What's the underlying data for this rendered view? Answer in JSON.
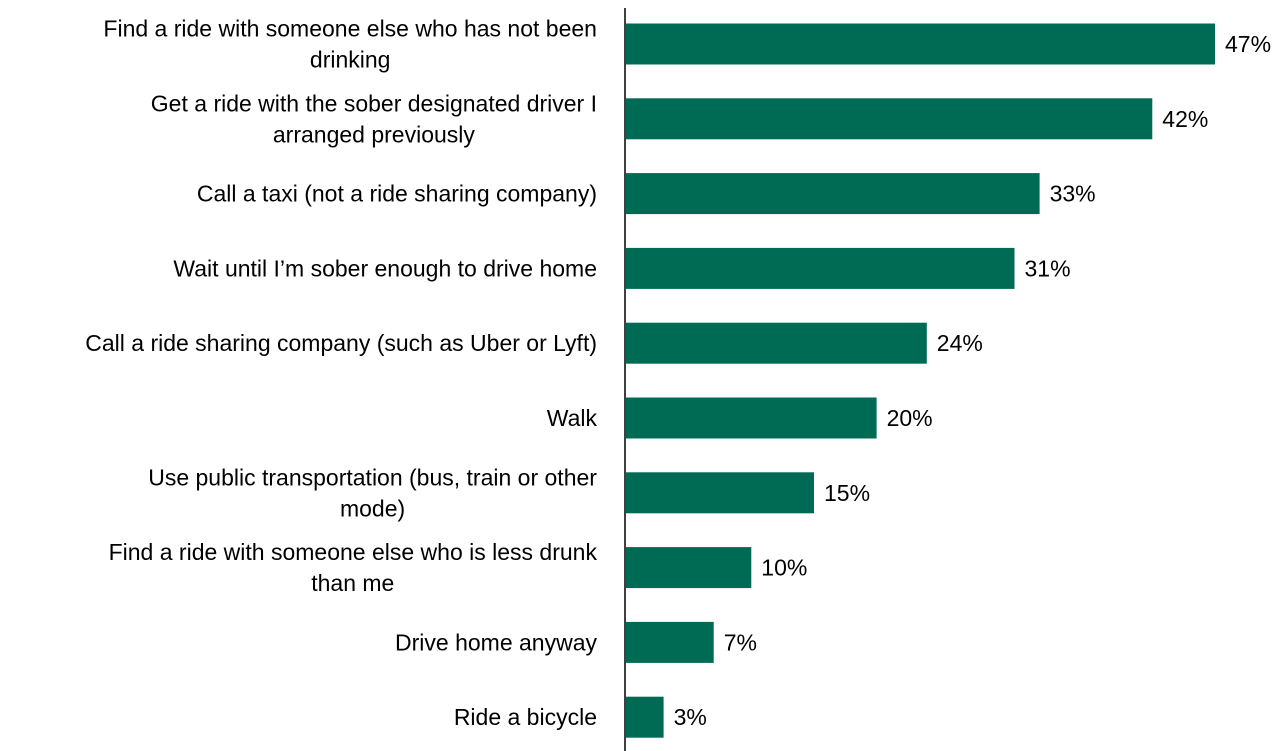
{
  "chart_data": {
    "type": "bar",
    "orientation": "horizontal",
    "title": "",
    "xlabel": "",
    "ylabel": "",
    "categories": [
      "Find a ride with someone else who has not been drinking",
      "Get a ride with the sober designated driver I arranged previously",
      "Call a taxi (not a ride sharing company)",
      "Wait until I’m sober enough to drive home",
      "Call a ride sharing company (such as Uber or Lyft)",
      "Walk",
      "Use public transportation (bus, train or other mode)",
      "Find a ride with someone else who is less drunk than me",
      "Drive home anyway",
      "Ride a bicycle"
    ],
    "category_lines": [
      [
        "Find a ride with someone else who has not been",
        "drinking"
      ],
      [
        "Get a ride with the sober designated driver I",
        "arranged previously"
      ],
      [
        "Call a taxi (not a ride sharing company)"
      ],
      [
        "Wait until I’m sober enough to drive home"
      ],
      [
        "Call a ride sharing company (such as Uber or Lyft)"
      ],
      [
        "Walk"
      ],
      [
        "Use public transportation (bus, train or other",
        "mode)"
      ],
      [
        "Find a ride with someone else who is less drunk",
        "than me"
      ],
      [
        "Drive home anyway"
      ],
      [
        "Ride a bicycle"
      ]
    ],
    "values": [
      47,
      42,
      33,
      31,
      24,
      20,
      15,
      10,
      7,
      3
    ],
    "value_labels": [
      "47%",
      "42%",
      "33%",
      "31%",
      "24%",
      "20%",
      "15%",
      "10%",
      "7%",
      "3%"
    ],
    "unit": "%",
    "bar_color": "#006B54",
    "grid": false,
    "legend": "none"
  }
}
